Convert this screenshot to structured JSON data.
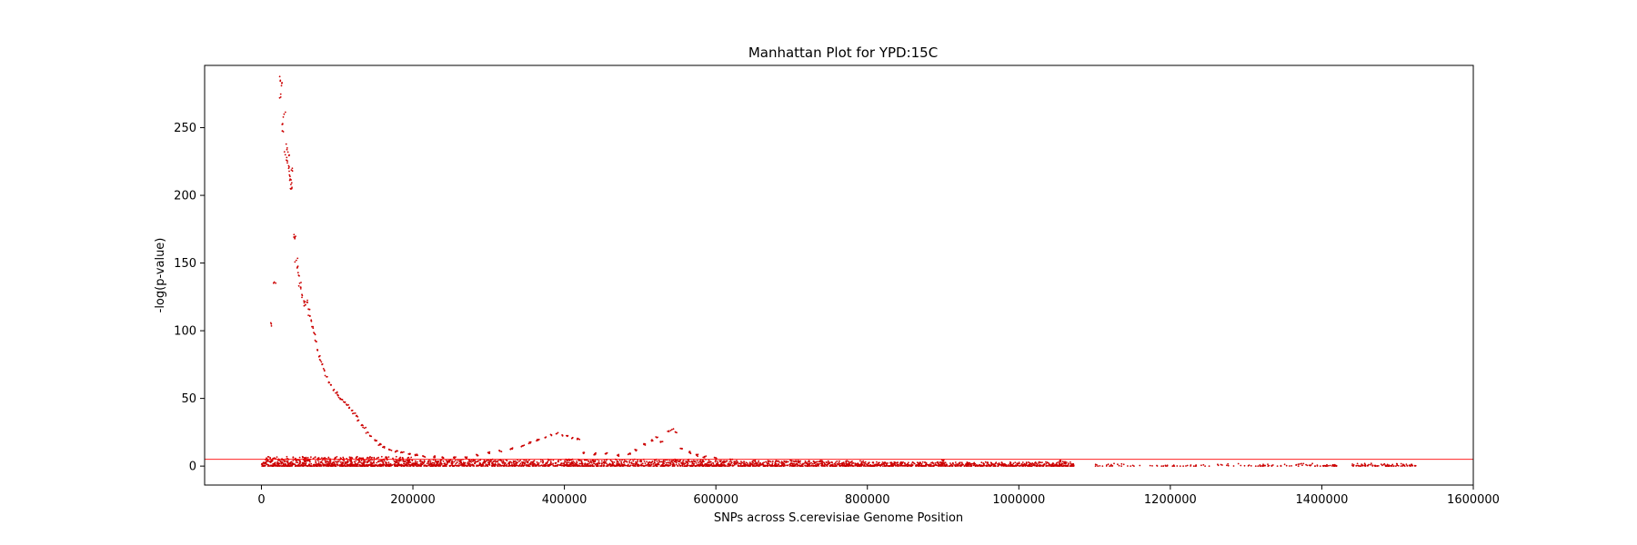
{
  "chart_data": {
    "type": "scatter",
    "title": "Manhattan Plot for YPD:15C",
    "xlabel": "SNPs across S.cerevisiae Genome Position",
    "ylabel": "-log(p-value)",
    "xlim": [
      -75000,
      1600000
    ],
    "ylim": [
      -14,
      296
    ],
    "xticks": [
      0,
      200000,
      400000,
      600000,
      800000,
      1000000,
      1200000,
      1400000,
      1600000
    ],
    "xtick_labels": [
      "0",
      "200000",
      "400000",
      "600000",
      "800000",
      "1000000",
      "1200000",
      "1400000",
      "1600000"
    ],
    "yticks": [
      0,
      50,
      100,
      150,
      200,
      250
    ],
    "ytick_labels": [
      "0",
      "50",
      "100",
      "150",
      "200",
      "250"
    ],
    "threshold": 5,
    "grid": false,
    "marker_color": "#cc0000",
    "threshold_color": "#ff0000",
    "peak_series": [
      {
        "x": 13000,
        "y": 105
      },
      {
        "x": 17000,
        "y": 136
      },
      {
        "x": 24000,
        "y": 272
      },
      {
        "x": 25000,
        "y": 285
      },
      {
        "x": 26500,
        "y": 281
      },
      {
        "x": 28000,
        "y": 253
      },
      {
        "x": 29000,
        "y": 247
      },
      {
        "x": 30000,
        "y": 260
      },
      {
        "x": 31500,
        "y": 230
      },
      {
        "x": 33000,
        "y": 226
      },
      {
        "x": 34000,
        "y": 235
      },
      {
        "x": 35000,
        "y": 232
      },
      {
        "x": 36000,
        "y": 220
      },
      {
        "x": 37000,
        "y": 215
      },
      {
        "x": 38000,
        "y": 212
      },
      {
        "x": 39000,
        "y": 208
      },
      {
        "x": 40000,
        "y": 205
      },
      {
        "x": 41000,
        "y": 218
      },
      {
        "x": 43000,
        "y": 171
      },
      {
        "x": 44000,
        "y": 168
      },
      {
        "x": 46000,
        "y": 152
      },
      {
        "x": 47500,
        "y": 147
      },
      {
        "x": 49000,
        "y": 141
      },
      {
        "x": 50500,
        "y": 135
      },
      {
        "x": 52000,
        "y": 131
      },
      {
        "x": 54000,
        "y": 126
      },
      {
        "x": 56000,
        "y": 122
      },
      {
        "x": 58000,
        "y": 119
      },
      {
        "x": 60000,
        "y": 121
      },
      {
        "x": 62000,
        "y": 116
      },
      {
        "x": 64000,
        "y": 111
      },
      {
        "x": 66000,
        "y": 107
      },
      {
        "x": 68000,
        "y": 103
      },
      {
        "x": 70000,
        "y": 98
      },
      {
        "x": 72000,
        "y": 92
      },
      {
        "x": 74000,
        "y": 86
      },
      {
        "x": 76000,
        "y": 81
      },
      {
        "x": 78000,
        "y": 78
      },
      {
        "x": 80000,
        "y": 75
      },
      {
        "x": 83000,
        "y": 71
      },
      {
        "x": 86000,
        "y": 66
      },
      {
        "x": 89000,
        "y": 62
      },
      {
        "x": 92000,
        "y": 60
      },
      {
        "x": 95000,
        "y": 56
      },
      {
        "x": 98000,
        "y": 54
      },
      {
        "x": 101000,
        "y": 52
      },
      {
        "x": 104000,
        "y": 50
      },
      {
        "x": 107000,
        "y": 49
      },
      {
        "x": 110000,
        "y": 47
      },
      {
        "x": 113000,
        "y": 45
      },
      {
        "x": 116000,
        "y": 43
      },
      {
        "x": 119000,
        "y": 41
      },
      {
        "x": 122000,
        "y": 39
      },
      {
        "x": 125000,
        "y": 37
      },
      {
        "x": 128000,
        "y": 34
      },
      {
        "x": 132000,
        "y": 30
      },
      {
        "x": 136000,
        "y": 28
      },
      {
        "x": 140000,
        "y": 25
      },
      {
        "x": 145000,
        "y": 22
      },
      {
        "x": 150000,
        "y": 19
      },
      {
        "x": 156000,
        "y": 16
      },
      {
        "x": 162000,
        "y": 14
      },
      {
        "x": 170000,
        "y": 12
      },
      {
        "x": 178000,
        "y": 11
      },
      {
        "x": 186000,
        "y": 10
      },
      {
        "x": 195000,
        "y": 9
      },
      {
        "x": 205000,
        "y": 8
      },
      {
        "x": 215000,
        "y": 7
      },
      {
        "x": 228000,
        "y": 7
      },
      {
        "x": 240000,
        "y": 6
      },
      {
        "x": 255000,
        "y": 6
      },
      {
        "x": 270000,
        "y": 6
      },
      {
        "x": 285000,
        "y": 8
      },
      {
        "x": 300000,
        "y": 10
      },
      {
        "x": 315000,
        "y": 11
      },
      {
        "x": 330000,
        "y": 13
      },
      {
        "x": 345000,
        "y": 15
      },
      {
        "x": 355000,
        "y": 17
      },
      {
        "x": 365000,
        "y": 19
      },
      {
        "x": 375000,
        "y": 21
      },
      {
        "x": 383000,
        "y": 23
      },
      {
        "x": 390000,
        "y": 24
      },
      {
        "x": 397000,
        "y": 23
      },
      {
        "x": 404000,
        "y": 22
      },
      {
        "x": 411000,
        "y": 21
      },
      {
        "x": 418000,
        "y": 20
      },
      {
        "x": 425000,
        "y": 10
      },
      {
        "x": 440000,
        "y": 9
      },
      {
        "x": 455000,
        "y": 9
      },
      {
        "x": 470000,
        "y": 8
      },
      {
        "x": 485000,
        "y": 9
      },
      {
        "x": 495000,
        "y": 12
      },
      {
        "x": 505000,
        "y": 16
      },
      {
        "x": 515000,
        "y": 19
      },
      {
        "x": 522000,
        "y": 21
      },
      {
        "x": 528000,
        "y": 18
      },
      {
        "x": 538000,
        "y": 26
      },
      {
        "x": 542000,
        "y": 27
      },
      {
        "x": 547000,
        "y": 25
      },
      {
        "x": 555000,
        "y": 13
      },
      {
        "x": 565000,
        "y": 10
      },
      {
        "x": 575000,
        "y": 8
      },
      {
        "x": 585000,
        "y": 7
      },
      {
        "x": 600000,
        "y": 6
      },
      {
        "x": 620000,
        "y": 5
      },
      {
        "x": 650000,
        "y": 4
      },
      {
        "x": 700000,
        "y": 4
      },
      {
        "x": 740000,
        "y": 4
      },
      {
        "x": 900000,
        "y": 4
      },
      {
        "x": 1055000,
        "y": 4
      },
      {
        "x": 1060000,
        "y": 3
      }
    ],
    "baseline_segments": [
      {
        "x_start": 0,
        "x_end": 200000,
        "y_max": 7,
        "count": 900
      },
      {
        "x_start": 200000,
        "y_max": 5,
        "x_end": 600000,
        "count": 1200
      },
      {
        "x_start": 600000,
        "x_end": 800000,
        "y_max": 4,
        "count": 600
      },
      {
        "x_start": 800000,
        "x_end": 1075000,
        "y_max": 3,
        "count": 700
      },
      {
        "x_start": 1100000,
        "x_end": 1160000,
        "y_max": 2,
        "count": 25
      },
      {
        "x_start": 1170000,
        "x_end": 1260000,
        "y_max": 1,
        "count": 30
      },
      {
        "x_start": 1260000,
        "x_end": 1400000,
        "y_max": 2,
        "count": 60
      },
      {
        "x_start": 1400000,
        "x_end": 1420000,
        "y_max": 1,
        "count": 25
      },
      {
        "x_start": 1440000,
        "x_end": 1525000,
        "y_max": 2,
        "count": 90
      }
    ]
  }
}
